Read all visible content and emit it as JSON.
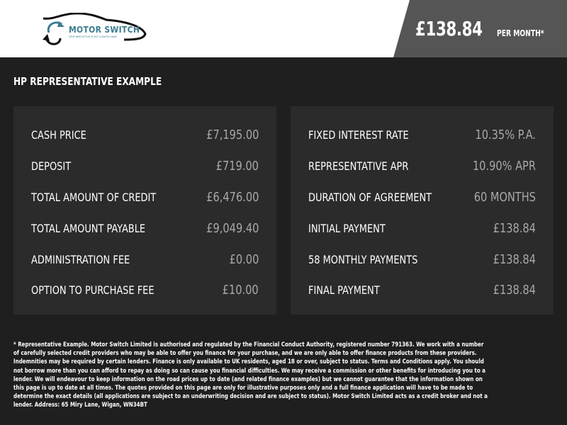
{
  "header": {
    "logo_name": "MOTOR SWITCH",
    "logo_tagline": "YOUR NEW MOTOR IS JUST A SWITCH AWAY",
    "monthly_price": "£138.84",
    "per_month_label": "PER MONTH*",
    "accent": "#3d7d92"
  },
  "title": "HP REPRESENTATIVE EXAMPLE",
  "left_panel": [
    {
      "label": "CASH PRICE",
      "value": "£7,195.00"
    },
    {
      "label": "DEPOSIT",
      "value": "£719.00"
    },
    {
      "label": "TOTAL AMOUNT OF CREDIT",
      "value": "£6,476.00"
    },
    {
      "label": "TOTAL AMOUNT PAYABLE",
      "value": "£9,049.40"
    },
    {
      "label": "ADMINISTRATION FEE",
      "value": "£0.00"
    },
    {
      "label": "OPTION TO PURCHASE FEE",
      "value": "£10.00"
    }
  ],
  "right_panel": [
    {
      "label": "FIXED INTEREST RATE",
      "value": "10.35% P.A."
    },
    {
      "label": "REPRESENTATIVE APR",
      "value": "10.90% APR"
    },
    {
      "label": "DURATION OF AGREEMENT",
      "value": "60 MONTHS"
    },
    {
      "label": "INITIAL PAYMENT",
      "value": "£138.84"
    },
    {
      "label": "58 MONTHLY PAYMENTS",
      "value": "£138.84"
    },
    {
      "label": "FINAL PAYMENT",
      "value": "£138.84"
    }
  ],
  "disclaimer": "* Representative Example. Motor Switch Limited  is authorised and regulated by the Financial Conduct Authority, registered number 791363. We work with a number of carefully selected credit providers who may be able to offer you finance for your purchase, and we are only able to offer finance products from these providers. Indemnities may be required by certain lenders. Finance is only available to UK residents, aged 18 or over, subject to status. Terms and Conditions apply. You should not borrow more than you can afford to repay as doing so can cause you financial difficulties. We may receive a commission or other benefits for introducing you to a lender. We will endeavour to keep information on the road prices up to date (and related finance examples) but we cannot guarantee that the information shown on this page is up to date at all times. The quotes provided on this page are only for illustrative purposes only and a full finance application will have to be made to determine the exact details (all applications are subject to an underwriting decision and are subject to status). Motor Switch Limited  acts as a credit broker and not a lender. Address: 65 Miry Lane, Wigan, WN34BT"
}
